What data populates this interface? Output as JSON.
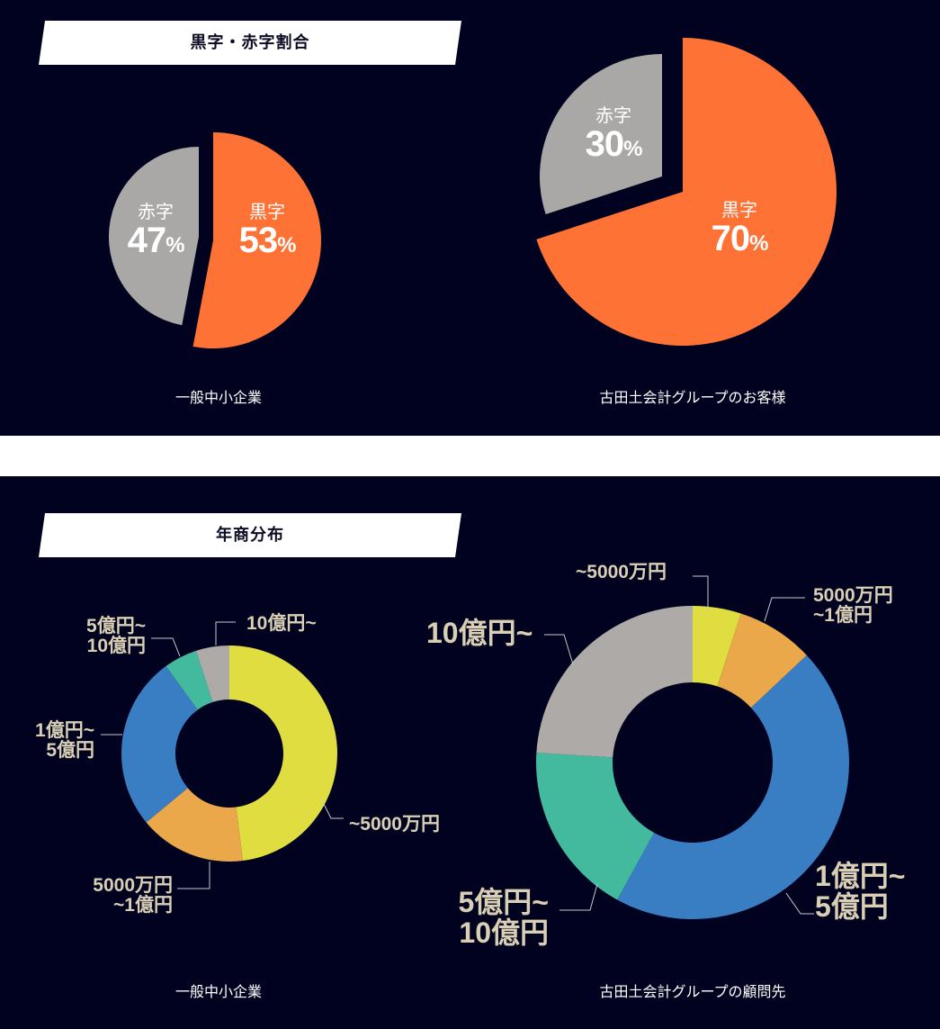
{
  "section1": {
    "title": "黒字・赤字割合",
    "left": {
      "caption": "一般中小企業",
      "slices": [
        {
          "name": "黒字",
          "pct": "53",
          "unit": "%"
        },
        {
          "name": "赤字",
          "pct": "47",
          "unit": "%"
        }
      ]
    },
    "right": {
      "caption": "古田土会計グループのお客様",
      "slices": [
        {
          "name": "黒字",
          "pct": "70",
          "unit": "%"
        },
        {
          "name": "赤字",
          "pct": "30",
          "unit": "%"
        }
      ]
    }
  },
  "section2": {
    "title": "年商分布",
    "left": {
      "caption": "一般中小企業",
      "labels": {
        "under5000": "~5000万円",
        "5000to1oku_l1": "5000万円",
        "5000to1oku_l2": "~1億円",
        "1to5oku_l1": "1億円~",
        "1to5oku_l2": "5億円",
        "5to10oku_l1": "5億円~",
        "5to10oku_l2": "10億円",
        "over10oku": "10億円~"
      }
    },
    "right": {
      "caption": "古田土会計グループの顧問先",
      "labels": {
        "under5000": "~5000万円",
        "5000to1oku_l1": "5000万円",
        "5000to1oku_l2": "~1億円",
        "1to5oku_l1": "1億円~",
        "1to5oku_l2": "5億円",
        "5to10oku_l1": "5億円~",
        "5to10oku_l2": "10億円",
        "over10oku": "10億円~"
      }
    }
  },
  "colors": {
    "background": "#01021f",
    "profit": "#ff7236",
    "loss": "#a9a8a6",
    "under5000": "#e0dd41",
    "5000to1oku": "#eaa84a",
    "1to5oku": "#397dc3",
    "5to10oku": "#43b99d",
    "over10oku": "#adaaa8",
    "label": "#d9cfb4"
  },
  "chart_data": [
    {
      "type": "pie",
      "title": "黒字・赤字割合 — 一般中小企業",
      "categories": [
        "黒字",
        "赤字"
      ],
      "values": [
        53,
        47
      ],
      "unit": "%"
    },
    {
      "type": "pie",
      "title": "黒字・赤字割合 — 古田土会計グループのお客様",
      "categories": [
        "黒字",
        "赤字"
      ],
      "values": [
        70,
        30
      ],
      "unit": "%"
    },
    {
      "type": "pie",
      "subtype": "donut",
      "title": "年商分布 — 一般中小企業",
      "categories": [
        "~5000万円",
        "5000万円~1億円",
        "1億円~5億円",
        "5億円~10億円",
        "10億円~"
      ],
      "values": [
        48,
        16,
        26,
        5,
        5
      ],
      "unit": "% (estimated)"
    },
    {
      "type": "pie",
      "subtype": "donut",
      "title": "年商分布 — 古田土会計グループの顧問先",
      "categories": [
        "~5000万円",
        "5000万円~1億円",
        "1億円~5億円",
        "5億円~10億円",
        "10億円~"
      ],
      "values": [
        5,
        8,
        45,
        18,
        24
      ],
      "unit": "% (estimated)"
    }
  ]
}
